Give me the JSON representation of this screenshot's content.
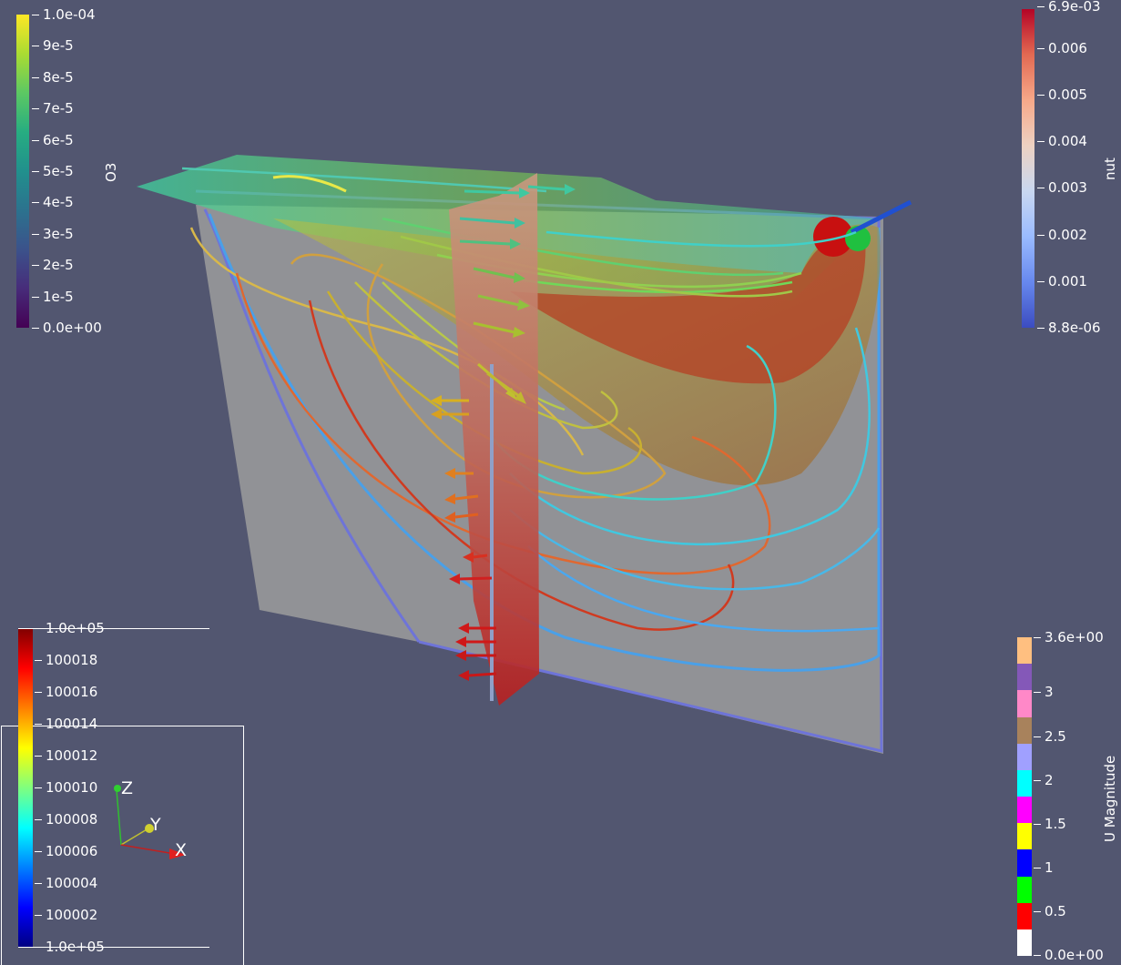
{
  "o3_legend": {
    "title": "O3",
    "ticks": [
      "1.0e-04",
      "9e-5",
      "8e-5",
      "7e-5",
      "6e-5",
      "5e-5",
      "4e-5",
      "3e-5",
      "2e-5",
      "1e-5",
      "0.0e+00"
    ]
  },
  "nut_legend": {
    "title": "nut",
    "ticks": [
      "6.9e-03",
      "0.006",
      "0.005",
      "0.004",
      "0.003",
      "0.002",
      "0.001",
      "8.8e-06"
    ]
  },
  "p_legend": {
    "ticks": [
      "1.0e+05",
      "100018",
      "100016",
      "100014",
      "100012",
      "100010",
      "100008",
      "100006",
      "100004",
      "100002",
      "1.0e+05"
    ]
  },
  "u_legend": {
    "title": "U Magnitude",
    "ticks": [
      "3.6e+00",
      "3",
      "2.5",
      "2",
      "1.5",
      "1",
      "0.5",
      "0.0e+00"
    ],
    "colors": [
      "#ffbf80",
      "#8458b8",
      "#ff88c8",
      "#a8825c",
      "#a0a0ff",
      "#00ffff",
      "#ff00ff",
      "#ffff00",
      "#0000ff",
      "#00ff00",
      "#ff0000",
      "#ffffff"
    ]
  },
  "axes": {
    "x": "X",
    "y": "Y",
    "z": "Z"
  }
}
